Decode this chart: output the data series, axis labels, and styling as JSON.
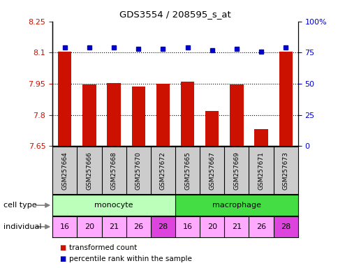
{
  "title": "GDS3554 / 208595_s_at",
  "samples": [
    "GSM257664",
    "GSM257666",
    "GSM257668",
    "GSM257670",
    "GSM257672",
    "GSM257665",
    "GSM257667",
    "GSM257669",
    "GSM257671",
    "GSM257673"
  ],
  "bar_values": [
    8.105,
    7.945,
    7.955,
    7.935,
    7.95,
    7.96,
    7.82,
    7.945,
    7.73,
    8.105
  ],
  "percentile_values": [
    79,
    79,
    79,
    78,
    78,
    79,
    77,
    78,
    76,
    79
  ],
  "cell_types": [
    "monocyte",
    "monocyte",
    "monocyte",
    "monocyte",
    "monocyte",
    "macrophage",
    "macrophage",
    "macrophage",
    "macrophage",
    "macrophage"
  ],
  "individuals": [
    "16",
    "20",
    "21",
    "26",
    "28",
    "16",
    "20",
    "21",
    "26",
    "28"
  ],
  "ylim_left": [
    7.65,
    8.25
  ],
  "ylim_right": [
    0,
    100
  ],
  "yticks_left": [
    7.65,
    7.8,
    7.95,
    8.1,
    8.25
  ],
  "ytick_labels_left": [
    "7.65",
    "7.8",
    "7.95",
    "8.1",
    "8.25"
  ],
  "yticks_right": [
    0,
    25,
    50,
    75,
    100
  ],
  "ytick_labels_right": [
    "0",
    "25",
    "50",
    "75",
    "100%"
  ],
  "bar_color": "#cc1100",
  "dot_color": "#0000cc",
  "monocyte_color": "#bbffbb",
  "macrophage_color": "#44dd44",
  "individual_light_color": "#ffaaff",
  "individual_dark_color": "#dd44dd",
  "sample_box_color": "#cccccc",
  "tick_label_color_left": "#cc1100",
  "tick_label_color_right": "#0000cc",
  "legend_red_label": "transformed count",
  "legend_blue_label": "percentile rank within the sample",
  "bar_bottom": 7.65,
  "bar_width": 0.55
}
